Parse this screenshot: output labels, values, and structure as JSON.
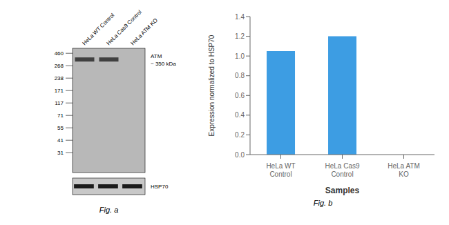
{
  "chart_data": [
    {
      "type": "blot",
      "title": "Fig. a",
      "categories": [
        "HeLa WT Control",
        "HeLa Cas9 Control",
        "HeLa ATM KO"
      ],
      "annotations": [
        "460",
        "268",
        "238",
        "171",
        "117",
        "71",
        "55",
        "41",
        "31",
        "ATM\n~ 350 kDa",
        "HSP70"
      ],
      "color": "#404040"
    },
    {
      "type": "bar",
      "title": "Fig. b",
      "categories": [
        "HeLa WT Control",
        "HeLa Cas9 Control",
        "HeLa ATM KO"
      ],
      "values": [
        1.05,
        1.2,
        0.0
      ],
      "color": "#3d9de3",
      "xlabel": "Samples",
      "ylabel": "Expression normalized to HSP70",
      "ylim": [
        0,
        1.4
      ],
      "yticks": [
        {
          "value": 0,
          "label": "0.0"
        },
        0.2,
        0.4,
        0.6,
        0.8,
        {
          "value": 1.0,
          "label": "1.0"
        },
        1.2,
        1.4
      ],
      "grid": false
    }
  ]
}
